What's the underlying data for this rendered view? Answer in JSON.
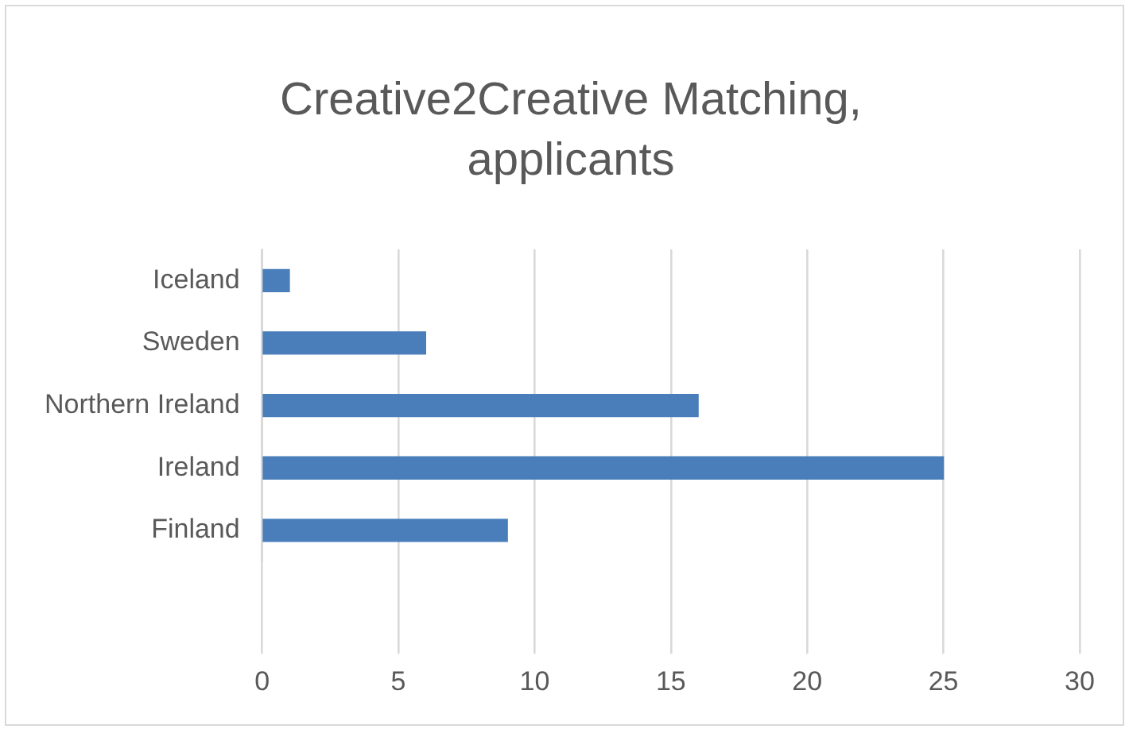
{
  "chart_data": {
    "type": "bar",
    "orientation": "horizontal",
    "title": "Creative2Creative Matching, applicants",
    "categories": [
      "Iceland",
      "Sweden",
      "Northern Ireland",
      "Ireland",
      "Finland"
    ],
    "values": [
      1,
      6,
      16,
      25,
      9
    ],
    "color": "#4a7ebb",
    "xlim": [
      0,
      30
    ],
    "xticks": [
      0,
      5,
      10,
      15,
      20,
      25,
      30
    ],
    "grid": "x"
  }
}
